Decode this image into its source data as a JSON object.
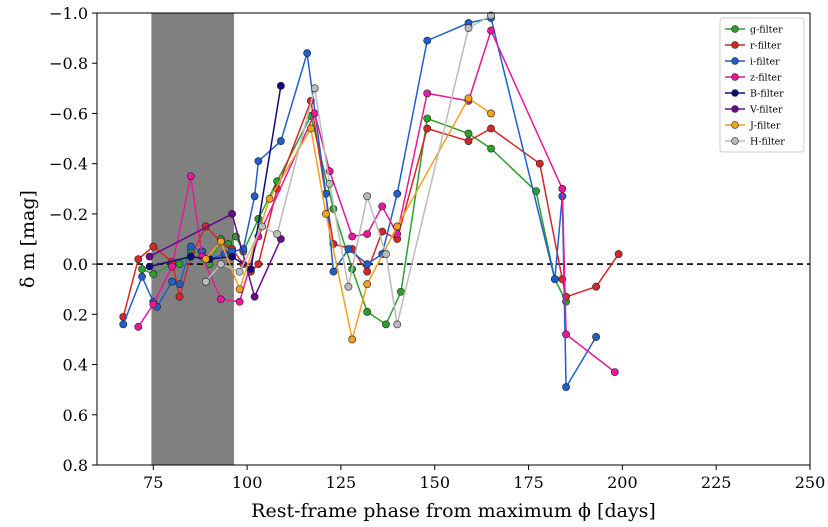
{
  "chart_data": {
    "type": "line",
    "title": "",
    "xlabel": "Rest-frame phase from maximum ϕ [days]",
    "ylabel": "δ m [mag]",
    "xlim": [
      60,
      250
    ],
    "ylim": [
      0.8,
      -1.0
    ],
    "y_inverted": true,
    "grid": false,
    "legend_position": "top-right",
    "x_ticks": [
      75,
      100,
      125,
      150,
      175,
      200,
      225,
      250
    ],
    "y_ticks": [
      -1.0,
      -0.8,
      -0.6,
      -0.4,
      -0.2,
      0.0,
      0.2,
      0.4,
      0.6,
      0.8
    ],
    "x_tick_labels": [
      "75",
      "100",
      "125",
      "150",
      "175",
      "200",
      "225",
      "250"
    ],
    "y_tick_labels": [
      "−1.0",
      "−0.8",
      "−0.6",
      "−0.4",
      "−0.2",
      "0.0",
      "0.2",
      "0.4",
      "0.6",
      "0.8"
    ],
    "reference_line": {
      "y": 0.0,
      "style": "dashed",
      "color": "#000000"
    },
    "shaded_region": {
      "x": [
        74.5,
        96.5
      ],
      "color": "#808080"
    },
    "series": [
      {
        "name": "g-filter",
        "color": "#2ca02c",
        "points": [
          [
            72,
            0.02
          ],
          [
            75,
            0.04
          ],
          [
            80,
            0.0
          ],
          [
            82,
            0.0
          ],
          [
            85,
            -0.05
          ],
          [
            88,
            -0.05
          ],
          [
            90,
            0.0
          ],
          [
            93,
            -0.1
          ],
          [
            95,
            -0.08
          ],
          [
            97,
            -0.11
          ],
          [
            99,
            -0.05
          ],
          [
            103,
            -0.18
          ],
          [
            108,
            -0.33
          ],
          [
            117,
            -0.59
          ],
          [
            123,
            -0.22
          ],
          [
            128,
            0.02
          ],
          [
            132,
            0.19
          ],
          [
            137,
            0.24
          ],
          [
            141,
            0.11
          ],
          [
            148,
            -0.58
          ],
          [
            159,
            -0.52
          ],
          [
            165,
            -0.46
          ],
          [
            177,
            -0.29
          ],
          [
            182,
            0.06
          ],
          [
            185,
            0.15
          ]
        ]
      },
      {
        "name": "r-filter",
        "color": "#d62728",
        "points": [
          [
            67,
            0.21
          ],
          [
            71,
            -0.02
          ],
          [
            75,
            -0.07
          ],
          [
            80,
            -0.01
          ],
          [
            82,
            0.13
          ],
          [
            85,
            -0.03
          ],
          [
            89,
            -0.15
          ],
          [
            93,
            -0.09
          ],
          [
            96,
            -0.06
          ],
          [
            99,
            -0.0
          ],
          [
            101,
            0.03
          ],
          [
            103,
            0.0
          ],
          [
            108,
            -0.3
          ],
          [
            117,
            -0.65
          ],
          [
            123,
            -0.08
          ],
          [
            128,
            -0.06
          ],
          [
            132,
            0.03
          ],
          [
            136,
            -0.13
          ],
          [
            140,
            -0.1
          ],
          [
            148,
            -0.54
          ],
          [
            159,
            -0.49
          ],
          [
            165,
            -0.54
          ],
          [
            178,
            -0.4
          ],
          [
            184,
            0.06
          ],
          [
            185,
            0.13
          ],
          [
            193,
            0.09
          ],
          [
            199,
            -0.04
          ]
        ]
      },
      {
        "name": "i-filter",
        "color": "#1f5fcc",
        "points": [
          [
            67,
            0.24
          ],
          [
            72,
            0.05
          ],
          [
            75,
            0.15
          ],
          [
            76,
            0.17
          ],
          [
            80,
            0.07
          ],
          [
            82,
            0.08
          ],
          [
            85,
            -0.07
          ],
          [
            88,
            -0.05
          ],
          [
            90,
            -0.02
          ],
          [
            94,
            -0.04
          ],
          [
            96,
            -0.05
          ],
          [
            99,
            -0.06
          ],
          [
            102,
            -0.27
          ],
          [
            103,
            -0.41
          ],
          [
            109,
            -0.49
          ],
          [
            116,
            -0.84
          ],
          [
            121,
            -0.28
          ],
          [
            123,
            0.03
          ],
          [
            127,
            -0.06
          ],
          [
            132,
            0.0
          ],
          [
            136,
            -0.04
          ],
          [
            140,
            -0.28
          ],
          [
            148,
            -0.89
          ],
          [
            159,
            -0.96
          ],
          [
            165,
            -0.98
          ],
          [
            182,
            0.06
          ],
          [
            184,
            -0.27
          ],
          [
            185,
            0.49
          ],
          [
            193,
            0.29
          ]
        ]
      },
      {
        "name": "z-filter",
        "color": "#e8179b",
        "points": [
          [
            71,
            0.25
          ],
          [
            75,
            0.16
          ],
          [
            80,
            0.01
          ],
          [
            85,
            -0.35
          ],
          [
            88,
            -0.03
          ],
          [
            93,
            0.14
          ],
          [
            98,
            0.15
          ],
          [
            103,
            -0.11
          ],
          [
            118,
            -0.6
          ],
          [
            122,
            -0.37
          ],
          [
            128,
            -0.11
          ],
          [
            132,
            -0.12
          ],
          [
            136,
            -0.23
          ],
          [
            140,
            -0.12
          ],
          [
            148,
            -0.68
          ],
          [
            159,
            -0.65
          ],
          [
            165,
            -0.93
          ],
          [
            184,
            -0.3
          ],
          [
            185,
            0.28
          ],
          [
            198,
            0.43
          ]
        ]
      },
      {
        "name": "B-filter",
        "color": "#0d0d7a",
        "points": [
          [
            74,
            0.01
          ],
          [
            85,
            -0.03
          ],
          [
            90,
            -0.02
          ],
          [
            96,
            -0.03
          ],
          [
            101,
            0.02
          ],
          [
            109,
            -0.71
          ]
        ]
      },
      {
        "name": "V-filter",
        "color": "#6a0a8a",
        "points": [
          [
            74,
            -0.03
          ],
          [
            96,
            -0.2
          ],
          [
            102,
            0.13
          ],
          [
            109,
            -0.1
          ]
        ]
      },
      {
        "name": "J-filter",
        "color": "#f2a11a",
        "points": [
          [
            89,
            -0.02
          ],
          [
            93,
            -0.09
          ],
          [
            98,
            0.1
          ],
          [
            106,
            -0.26
          ],
          [
            117,
            -0.54
          ],
          [
            121,
            -0.2
          ],
          [
            128,
            0.3
          ],
          [
            132,
            0.08
          ],
          [
            140,
            -0.15
          ],
          [
            159,
            -0.66
          ],
          [
            165,
            -0.6
          ]
        ]
      },
      {
        "name": "H-filter",
        "color": "#bbbbbb",
        "points": [
          [
            89,
            0.07
          ],
          [
            93,
            0.0
          ],
          [
            98,
            0.03
          ],
          [
            104,
            -0.15
          ],
          [
            108,
            -0.12
          ],
          [
            118,
            -0.7
          ],
          [
            122,
            -0.32
          ],
          [
            127,
            0.09
          ],
          [
            132,
            -0.27
          ],
          [
            137,
            -0.04
          ],
          [
            140,
            0.24
          ],
          [
            159,
            -0.94
          ],
          [
            165,
            -0.99
          ]
        ]
      }
    ]
  }
}
